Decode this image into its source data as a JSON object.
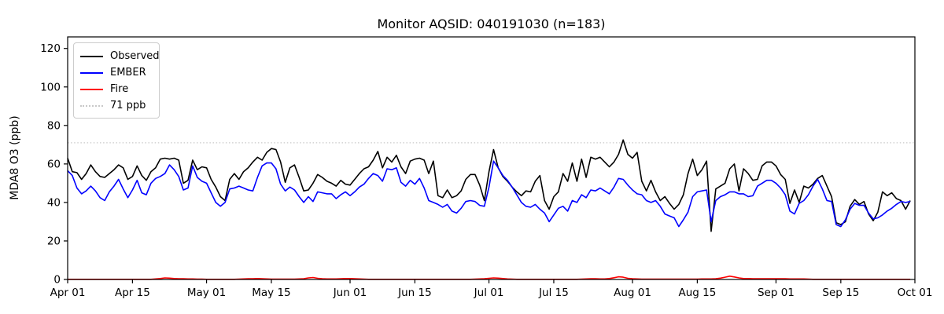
{
  "title": "Monitor AQSID: 040191030 (n=183)",
  "y_axis": {
    "label": "MDA8 O3 (ppb)",
    "ticks": [
      0,
      20,
      40,
      60,
      80,
      100,
      120
    ]
  },
  "x_axis": {
    "ticks": [
      {
        "label": "Apr 01",
        "day": 0
      },
      {
        "label": "Apr 15",
        "day": 14
      },
      {
        "label": "May 01",
        "day": 30
      },
      {
        "label": "May 15",
        "day": 44
      },
      {
        "label": "Jun 01",
        "day": 61
      },
      {
        "label": "Jun 15",
        "day": 75
      },
      {
        "label": "Jul 01",
        "day": 91
      },
      {
        "label": "Jul 15",
        "day": 105
      },
      {
        "label": "Aug 01",
        "day": 122
      },
      {
        "label": "Aug 15",
        "day": 136
      },
      {
        "label": "Sep 01",
        "day": 153
      },
      {
        "label": "Sep 15",
        "day": 167
      },
      {
        "label": "Oct 01",
        "day": 183
      }
    ]
  },
  "legend": {
    "items": [
      {
        "label": "Observed",
        "color": "#000000",
        "style": "solid"
      },
      {
        "label": "EMBER",
        "color": "#0000ff",
        "style": "solid"
      },
      {
        "label": "Fire",
        "color": "#ff0000",
        "style": "solid"
      },
      {
        "label": "71 ppb",
        "color": "#c8c8c8",
        "style": "dotted"
      }
    ]
  },
  "chart_data": {
    "type": "line",
    "title": "Monitor AQSID: 040191030 (n=183)",
    "xlabel": "",
    "ylabel": "MDA8 O3 (ppb)",
    "x_start": "Apr 01",
    "x_end": "Sep 30",
    "n_points": 183,
    "x_domain_days": 183,
    "ylim": [
      0,
      126
    ],
    "grid": false,
    "legend_position": "upper left",
    "threshold": {
      "value": 71,
      "label": "71 ppb",
      "color": "#c8c8c8",
      "style": "dotted"
    },
    "series": [
      {
        "name": "Observed",
        "color": "#000000",
        "values": [
          63,
          56,
          55.5,
          52,
          55,
          59.5,
          56,
          53.5,
          53,
          55,
          57,
          59.5,
          58,
          52,
          53.5,
          59,
          54,
          51.5,
          56,
          58,
          62.5,
          63,
          62.5,
          63,
          62,
          50,
          51.5,
          62,
          57,
          58.5,
          58,
          52,
          48,
          43,
          41,
          52,
          55,
          52,
          56,
          58,
          61,
          63.5,
          62,
          66,
          68,
          67.5,
          61,
          50.5,
          58,
          59.5,
          53,
          46,
          46.5,
          50,
          54.5,
          53,
          51,
          50,
          48.5,
          51.5,
          49.5,
          49,
          52,
          55,
          57.5,
          58.5,
          62,
          66.5,
          58,
          63.5,
          61,
          64.5,
          58.5,
          55,
          61.5,
          62.5,
          63,
          62,
          55,
          61.5,
          43.5,
          42.5,
          46.5,
          42.5,
          43.5,
          46,
          52,
          54.5,
          54.5,
          49,
          41,
          56,
          67.5,
          58,
          53.5,
          51,
          48,
          45.5,
          43.5,
          46,
          45.5,
          51,
          54,
          41,
          36.5,
          43,
          45.5,
          55,
          51,
          60.5,
          51,
          62.5,
          53,
          63.5,
          62.5,
          63.5,
          61,
          58.5,
          61,
          65,
          72.5,
          65,
          63,
          66,
          51,
          46,
          51.5,
          45.5,
          41,
          43,
          39.5,
          36.5,
          39,
          44,
          55,
          62.5,
          54,
          57,
          61.5,
          25,
          47,
          48.5,
          50,
          57.5,
          60,
          46,
          57.5,
          55,
          51.5,
          52,
          59,
          61,
          61,
          59,
          54.5,
          52,
          39.5,
          46.5,
          40,
          48.5,
          47.5,
          49.5,
          52.5,
          54,
          48.5,
          43,
          29.5,
          28.5,
          30,
          38,
          41.5,
          39,
          40.5,
          34,
          30.5,
          35,
          45.5,
          43.5,
          45,
          42,
          41,
          36.5,
          41
        ]
      },
      {
        "name": "EMBER",
        "color": "#0000ff",
        "values": [
          56.5,
          54,
          47.5,
          44.5,
          46,
          48.5,
          46,
          42.5,
          41,
          45.5,
          48.5,
          52,
          47,
          42.5,
          46.5,
          51.5,
          45,
          44,
          50,
          52.5,
          53.5,
          55,
          59.5,
          57,
          53.5,
          46.5,
          47.5,
          59,
          53,
          51,
          50,
          45,
          40,
          38,
          40,
          47,
          47.5,
          48.5,
          47.5,
          46.5,
          46,
          53,
          59,
          60.5,
          60.5,
          57.5,
          49.5,
          46,
          48,
          46.5,
          43,
          40,
          43,
          40.5,
          45.5,
          45,
          44.5,
          44.5,
          42,
          44,
          45.5,
          43.5,
          45.5,
          48,
          49.5,
          52.5,
          55,
          54,
          51,
          57.5,
          57,
          58,
          50.5,
          48.5,
          51.5,
          49.5,
          52.5,
          47.5,
          41,
          40,
          39,
          37.5,
          39,
          35.5,
          34.5,
          37,
          40.5,
          41,
          40.5,
          38.5,
          38,
          48,
          61.5,
          58,
          54,
          51.5,
          48,
          44,
          40,
          38,
          37.5,
          39,
          36.5,
          34.5,
          30,
          33.5,
          37,
          38,
          35.5,
          41,
          40,
          44,
          42.5,
          46.5,
          46,
          47.5,
          46,
          44.5,
          48,
          52.5,
          52,
          49,
          46.5,
          44.5,
          44,
          41,
          40,
          41,
          38,
          34,
          33,
          32,
          27.5,
          31,
          35,
          43,
          45.5,
          46,
          46.5,
          30,
          41,
          43,
          44,
          45.5,
          45.5,
          44.5,
          44.5,
          43,
          43.5,
          48.5,
          50,
          51.5,
          51.5,
          50,
          47.5,
          44,
          35.5,
          34,
          39.5,
          41,
          44,
          48.5,
          52,
          47,
          41,
          40.5,
          28.5,
          27.5,
          31,
          36.5,
          39.5,
          38.5,
          38.5,
          34.5,
          31.5,
          32,
          33.5,
          35.5,
          37,
          39,
          40.5,
          40,
          40.5
        ]
      },
      {
        "name": "Fire",
        "color": "#ff0000",
        "values": [
          0.1,
          0.1,
          0.1,
          0.1,
          0.1,
          0.1,
          0.1,
          0.1,
          0.1,
          0.1,
          0.1,
          0.1,
          0.1,
          0.1,
          0.1,
          0.1,
          0.1,
          0.1,
          0.1,
          0.3,
          0.5,
          0.8,
          0.7,
          0.5,
          0.4,
          0.4,
          0.3,
          0.3,
          0.2,
          0.2,
          0.1,
          0.1,
          0.1,
          0.1,
          0.1,
          0.1,
          0.1,
          0.2,
          0.3,
          0.4,
          0.4,
          0.5,
          0.4,
          0.3,
          0.2,
          0.2,
          0.2,
          0.2,
          0.2,
          0.2,
          0.3,
          0.4,
          0.8,
          1.0,
          0.6,
          0.4,
          0.3,
          0.3,
          0.3,
          0.4,
          0.5,
          0.5,
          0.4,
          0.3,
          0.2,
          0.1,
          0.1,
          0.1,
          0.1,
          0.1,
          0.1,
          0.1,
          0.1,
          0.1,
          0.1,
          0.1,
          0.1,
          0.1,
          0.1,
          0.1,
          0.1,
          0.1,
          0.1,
          0.1,
          0.1,
          0.1,
          0.1,
          0.1,
          0.2,
          0.3,
          0.4,
          0.6,
          0.8,
          0.7,
          0.5,
          0.3,
          0.2,
          0.1,
          0.1,
          0.1,
          0.1,
          0.1,
          0.1,
          0.1,
          0.1,
          0.1,
          0.1,
          0.1,
          0.1,
          0.1,
          0.1,
          0.2,
          0.3,
          0.4,
          0.4,
          0.3,
          0.3,
          0.5,
          0.9,
          1.4,
          1.2,
          0.6,
          0.4,
          0.3,
          0.2,
          0.2,
          0.2,
          0.2,
          0.2,
          0.2,
          0.2,
          0.2,
          0.2,
          0.2,
          0.2,
          0.2,
          0.2,
          0.3,
          0.3,
          0.3,
          0.4,
          0.7,
          1.2,
          1.7,
          1.3,
          0.8,
          0.5,
          0.5,
          0.4,
          0.4,
          0.4,
          0.4,
          0.4,
          0.4,
          0.4,
          0.4,
          0.3,
          0.3,
          0.3,
          0.3,
          0.2,
          0.1,
          0.1,
          0.1,
          0.1,
          0.1,
          0.1,
          0.1,
          0.1,
          0.1,
          0.1,
          0.1,
          0.1,
          0.1,
          0.1,
          0.1,
          0.1,
          0.1,
          0.1,
          0.1,
          0.1,
          0.1,
          0.1
        ]
      }
    ]
  }
}
